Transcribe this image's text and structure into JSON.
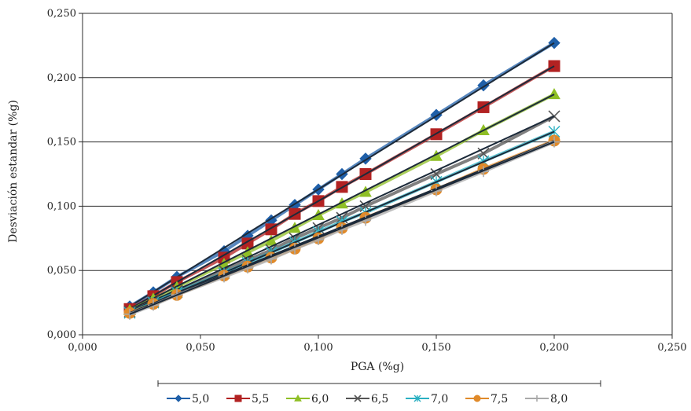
{
  "chart_data": {
    "type": "line",
    "title": "",
    "xlabel": "PGA (%g)",
    "ylabel": "Desviación estandar (%g)",
    "xlim": [
      0,
      0.25
    ],
    "ylim": [
      0,
      0.25
    ],
    "x_ticks": [
      "0,000",
      "0,050",
      "0,100",
      "0,150",
      "0,200",
      "0,250"
    ],
    "y_ticks": [
      "0,000",
      "0,050",
      "0,100",
      "0,150",
      "0,200",
      "0,250"
    ],
    "grid": "horizontal",
    "legend_position": "bottom",
    "x": [
      0.02,
      0.03,
      0.04,
      0.06,
      0.07,
      0.08,
      0.09,
      0.1,
      0.11,
      0.12,
      0.15,
      0.17,
      0.2
    ],
    "series": [
      {
        "name": "5,0",
        "color": "#1f5fa8",
        "marker": "diamond",
        "values": [
          0.022,
          0.033,
          0.045,
          0.065,
          0.077,
          0.089,
          0.101,
          0.113,
          0.125,
          0.137,
          0.171,
          0.194,
          0.227
        ]
      },
      {
        "name": "5,5",
        "color": "#b22222",
        "marker": "square",
        "values": [
          0.02,
          0.03,
          0.041,
          0.06,
          0.071,
          0.082,
          0.094,
          0.104,
          0.115,
          0.125,
          0.156,
          0.177,
          0.209
        ]
      },
      {
        "name": "6,0",
        "color": "#8fbf26",
        "marker": "triangle",
        "values": [
          0.019,
          0.028,
          0.037,
          0.055,
          0.064,
          0.073,
          0.083,
          0.093,
          0.102,
          0.111,
          0.139,
          0.159,
          0.187
        ]
      },
      {
        "name": "6,5",
        "color": "#555555",
        "marker": "x",
        "values": [
          0.018,
          0.026,
          0.034,
          0.05,
          0.058,
          0.066,
          0.075,
          0.083,
          0.091,
          0.1,
          0.125,
          0.141,
          0.17
        ]
      },
      {
        "name": "7,0",
        "color": "#2bb0c2",
        "marker": "asterisk",
        "values": [
          0.017,
          0.025,
          0.033,
          0.048,
          0.056,
          0.064,
          0.072,
          0.08,
          0.088,
          0.095,
          0.119,
          0.135,
          0.158
        ]
      },
      {
        "name": "7,5",
        "color": "#e08a2a",
        "marker": "circle",
        "values": [
          0.017,
          0.024,
          0.031,
          0.046,
          0.053,
          0.06,
          0.067,
          0.075,
          0.083,
          0.091,
          0.113,
          0.129,
          0.151
        ]
      },
      {
        "name": "8,0",
        "color": "#a9a9a9",
        "marker": "plus",
        "values": [
          0.016,
          0.023,
          0.031,
          0.045,
          0.052,
          0.059,
          0.067,
          0.074,
          0.082,
          0.089,
          0.112,
          0.127,
          0.15
        ]
      }
    ]
  }
}
